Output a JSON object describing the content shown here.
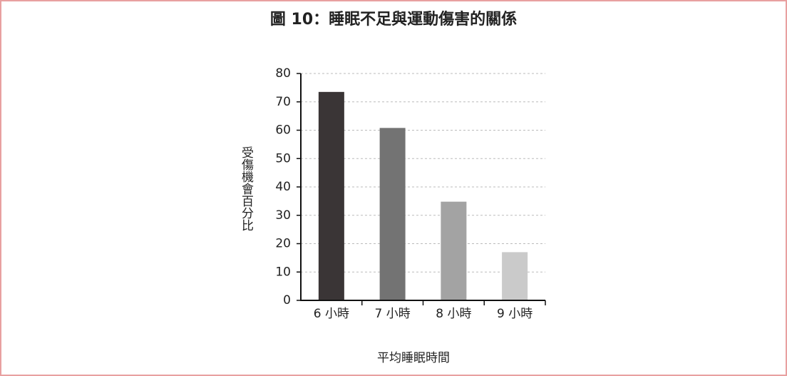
{
  "chart_data": {
    "type": "bar",
    "title": "圖 10：睡眠不足與運動傷害的關係",
    "x_label": "平均睡眠時間",
    "y_label": "受傷機會百分比",
    "categories": [
      "6 小時",
      "7 小時",
      "8 小時",
      "9 小時"
    ],
    "values": [
      73.5,
      60.8,
      34.8,
      17
    ],
    "colors": [
      "#3a3536",
      "#737373",
      "#a3a3a3",
      "#cacaca"
    ],
    "ylim": [
      0,
      80
    ],
    "yticks": [
      0,
      10,
      20,
      30,
      40,
      50,
      60,
      70,
      80
    ],
    "grid": true
  }
}
